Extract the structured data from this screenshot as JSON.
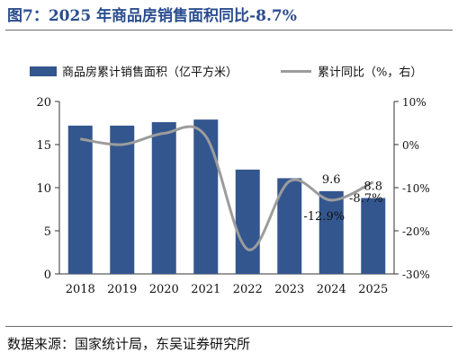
{
  "header": {
    "title": "图7：2025 年商品房销售面积同比-8.7%"
  },
  "footer": {
    "source": "数据来源：国家统计局，东吴证券研究所"
  },
  "colors": {
    "bar": "#34568e",
    "line": "#9c9c9c",
    "title": "#2a4d8f"
  },
  "chart_data": {
    "type": "bar",
    "title": "图7：2025 年商品房销售面积同比-8.7%",
    "categories": [
      "2018",
      "2019",
      "2020",
      "2021",
      "2022",
      "2023",
      "2024",
      "2025"
    ],
    "legend_position": "top",
    "grid": false,
    "y_left": {
      "lim": [
        0,
        20
      ],
      "ticks": [
        "0",
        "5",
        "10",
        "15",
        "20"
      ]
    },
    "y_right": {
      "lim": [
        -30,
        10
      ],
      "unit": "%",
      "ticks": [
        "-30%",
        "-20%",
        "-10%",
        "0%",
        "10%"
      ]
    },
    "series": [
      {
        "name": "商品房累计销售面积（亿平方米）",
        "type": "bar",
        "axis": "left",
        "values": [
          17.2,
          17.2,
          17.6,
          17.9,
          12.1,
          11.1,
          9.6,
          8.8
        ]
      },
      {
        "name": "累计同比（%，右）",
        "type": "line",
        "axis": "right",
        "values": [
          1.3,
          0.0,
          2.6,
          1.9,
          -24.3,
          -8.5,
          -12.9,
          -8.7
        ]
      }
    ],
    "annotations": [
      {
        "text": "9.6",
        "category": "2024",
        "series": 0
      },
      {
        "text": "8.8",
        "category": "2025",
        "series": 0
      },
      {
        "text": "-12.9%",
        "category": "2024",
        "series": 1
      },
      {
        "text": "-8.7%",
        "category": "2025",
        "series": 1
      }
    ]
  }
}
